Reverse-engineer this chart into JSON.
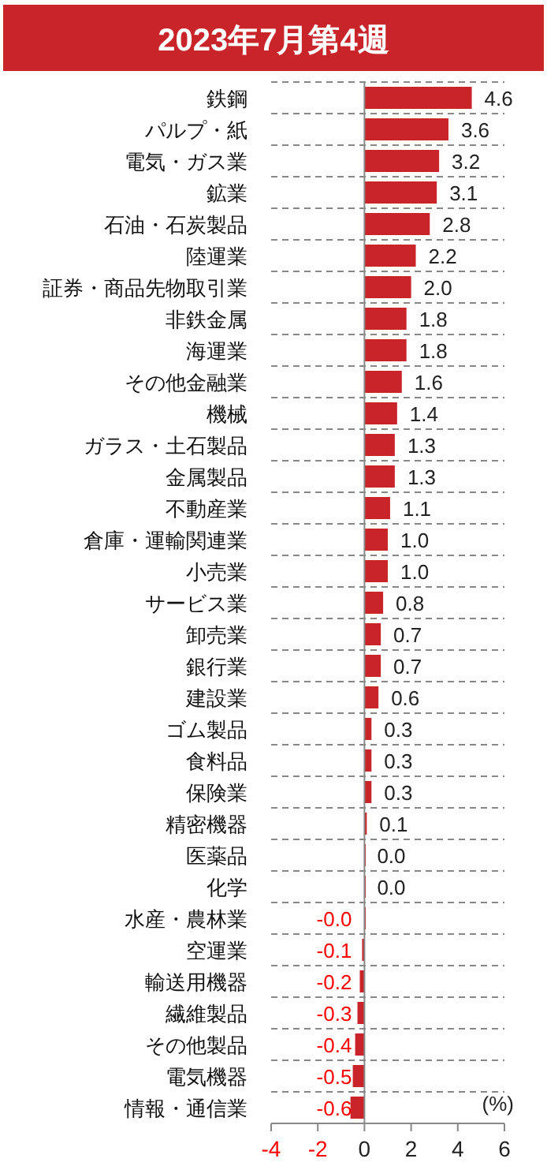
{
  "chart_data": {
    "type": "bar",
    "orientation": "horizontal",
    "title": "2023年7月第4週",
    "categories": [
      "鉄鋼",
      "パルプ・紙",
      "電気・ガス業",
      "鉱業",
      "石油・石炭製品",
      "陸運業",
      "証券・商品先物取引業",
      "非鉄金属",
      "海運業",
      "その他金融業",
      "機械",
      "ガラス・土石製品",
      "金属製品",
      "不動産業",
      "倉庫・運輸関連業",
      "小売業",
      "サービス業",
      "卸売業",
      "銀行業",
      "建設業",
      "ゴム製品",
      "食料品",
      "保険業",
      "精密機器",
      "医薬品",
      "化学",
      "水産・農林業",
      "空運業",
      "輸送用機器",
      "繊維製品",
      "その他製品",
      "電気機器",
      "情報・通信業"
    ],
    "values": [
      4.6,
      3.6,
      3.2,
      3.1,
      2.8,
      2.2,
      2.0,
      1.8,
      1.8,
      1.6,
      1.4,
      1.3,
      1.3,
      1.1,
      1.0,
      1.0,
      0.8,
      0.7,
      0.7,
      0.6,
      0.3,
      0.3,
      0.3,
      0.1,
      0.0,
      0.0,
      -0.0,
      -0.1,
      -0.2,
      -0.3,
      -0.4,
      -0.5,
      -0.6
    ],
    "value_labels": [
      "4.6",
      "3.6",
      "3.2",
      "3.1",
      "2.8",
      "2.2",
      "2.0",
      "1.8",
      "1.8",
      "1.6",
      "1.4",
      "1.3",
      "1.3",
      "1.1",
      "1.0",
      "1.0",
      "0.8",
      "0.7",
      "0.7",
      "0.6",
      "0.3",
      "0.3",
      "0.3",
      "0.1",
      "0.0",
      "0.0",
      "-0.0",
      "-0.1",
      "-0.2",
      "-0.3",
      "-0.4",
      "-0.5",
      "-0.6"
    ],
    "color": "#c9242a",
    "xlim": [
      -4,
      6
    ],
    "xticks": [
      -4,
      -2,
      0,
      2,
      4,
      6
    ],
    "grid": "y",
    "annotations": [
      "(%)"
    ]
  }
}
